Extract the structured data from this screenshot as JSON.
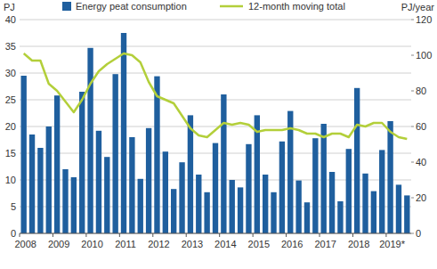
{
  "chart_data": {
    "type": "bar",
    "ylabel": "PJ",
    "y2label": "PJ/year",
    "categories": [
      "2008",
      null,
      null,
      null,
      "2009",
      null,
      null,
      null,
      "2010",
      null,
      null,
      null,
      "2011",
      null,
      null,
      null,
      "2012",
      null,
      null,
      null,
      "2013",
      null,
      null,
      null,
      "2014",
      null,
      null,
      null,
      "2015",
      null,
      null,
      null,
      "2016",
      null,
      null,
      null,
      "2017",
      null,
      null,
      null,
      "2018",
      null,
      null,
      null,
      "2019*",
      null,
      null
    ],
    "series": [
      {
        "name": "Energy peat consumption",
        "type": "bar",
        "color": "#1f5f9e",
        "values": [
          29.5,
          18.5,
          16,
          20,
          25.8,
          12,
          10.5,
          26.5,
          34.7,
          19.2,
          14.3,
          29.8,
          37.5,
          18,
          10.2,
          19.7,
          29.4,
          15.3,
          8.3,
          13.3,
          22.1,
          11,
          7.7,
          16.9,
          26,
          10,
          8.6,
          16.7,
          22.1,
          11,
          7.7,
          17.2,
          22.9,
          9.9,
          5.8,
          17.8,
          20.5,
          11.5,
          6,
          15.8,
          27.2,
          11.2,
          7.9,
          15.6,
          21,
          9.1,
          7.1
        ]
      },
      {
        "name": "12-month moving total",
        "type": "line",
        "color": "#b3cf3a",
        "axis": "y2",
        "values": [
          101,
          97,
          97,
          84,
          80,
          74,
          68,
          75,
          84,
          91,
          95,
          98,
          101,
          100,
          96,
          85,
          77,
          75,
          73,
          66,
          59,
          55,
          54,
          58,
          62,
          61,
          62,
          61,
          57,
          58,
          58,
          58,
          59,
          58,
          56,
          56,
          54,
          56,
          56,
          54,
          61,
          60,
          62,
          62,
          57,
          54,
          53
        ]
      }
    ],
    "ylim": [
      0,
      40
    ],
    "yticks": [
      0,
      5,
      10,
      15,
      20,
      25,
      30,
      35,
      40
    ],
    "y2lim": [
      0,
      120
    ],
    "y2ticks": [
      0,
      20,
      40,
      60,
      80,
      100,
      120
    ],
    "grid": true,
    "legend": "top"
  }
}
